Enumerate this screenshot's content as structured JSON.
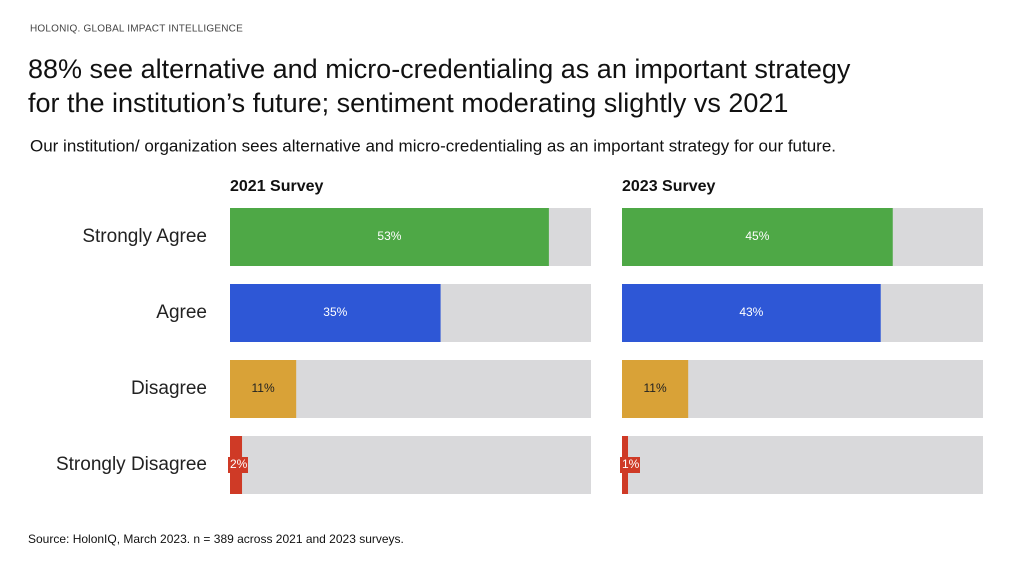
{
  "header": {
    "brand": "HOLONIQ. GLOBAL IMPACT INTELLIGENCE",
    "title": [
      "88% see alternative and micro-credentialing as an important strategy",
      "for the institution’s future; sentiment moderating slightly vs 2021"
    ],
    "subtitle": "Our institution/ organization sees alternative and micro-credentialing as an important strategy for our future."
  },
  "chart_data": {
    "type": "bar",
    "orientation": "horizontal",
    "categories": [
      "Strongly Agree",
      "Agree",
      "Disagree",
      "Strongly Disagree"
    ],
    "colors": [
      "#4ea846",
      "#2e57d6",
      "#d9a237",
      "#cf3a26"
    ],
    "track_color": "#d9d9db",
    "xlim": [
      0,
      60
    ],
    "series": [
      {
        "name": "2021 Survey",
        "values": [
          53,
          35,
          11,
          2
        ],
        "value_labels": [
          "53%",
          "35%",
          "11%",
          "2%"
        ]
      },
      {
        "name": "2023 Survey",
        "values": [
          45,
          43,
          11,
          1
        ],
        "value_labels": [
          "45%",
          "43%",
          "11%",
          "1%"
        ]
      }
    ]
  },
  "footer": {
    "source": "Source: HolonIQ, March 2023. n = 389 across 2021 and 2023 surveys."
  }
}
